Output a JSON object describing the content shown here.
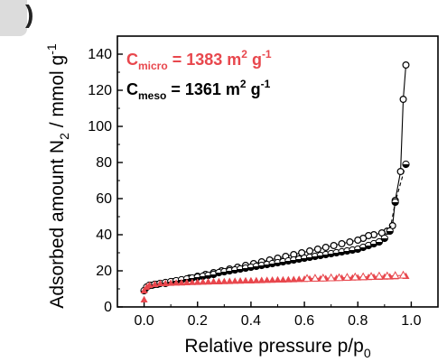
{
  "panel": {
    "label": ")"
  },
  "chart_data": {
    "type": "scatter",
    "title": "",
    "xlabel": "Relative pressure p/p",
    "xlabel_sub": "0",
    "ylabel_main": "Adsorbed amount N",
    "ylabel_sub": "2",
    "ylabel_unit": " / mmol g",
    "ylabel_sup": "-1",
    "xlim": [
      -0.1,
      1.1
    ],
    "ylim": [
      0,
      150
    ],
    "xticks": [
      "0.0",
      "0.2",
      "0.4",
      "0.6",
      "0.8",
      "1.0"
    ],
    "yticks": [
      "0",
      "20",
      "40",
      "60",
      "80",
      "100",
      "120",
      "140"
    ],
    "grid": false,
    "annotations": [
      {
        "main": "C",
        "sub": "micro",
        "rest": " = 1383 m",
        "sup": "2",
        "tail": " g",
        "sup2": "-1",
        "color": "#e8474d"
      },
      {
        "main": "C",
        "sub": "meso",
        "rest": " = 1361 m",
        "sup": "2",
        "tail": " g",
        "sup2": "-1",
        "color": "#000000"
      }
    ],
    "series": [
      {
        "marker": "circle-open",
        "color": "#000000",
        "line": "solid",
        "x": [
          0.98,
          0.97,
          0.96,
          0.94,
          0.93,
          0.91,
          0.89,
          0.86,
          0.84,
          0.82,
          0.8,
          0.77,
          0.74,
          0.71,
          0.68,
          0.65,
          0.62,
          0.59,
          0.56,
          0.53,
          0.5,
          0.47,
          0.44,
          0.41,
          0.38,
          0.35,
          0.32,
          0.29,
          0.26,
          0.23,
          0.2,
          0.17,
          0.14,
          0.11,
          0.08,
          0.05,
          0.03,
          0.01
        ],
        "y": [
          134,
          115,
          75,
          59,
          45,
          42,
          41,
          40,
          39.5,
          38,
          37,
          36,
          35,
          34,
          33,
          32,
          31,
          30,
          29,
          28,
          27,
          26,
          25,
          24,
          23,
          22,
          21,
          20,
          19,
          18,
          17,
          16,
          15,
          14,
          13,
          12.5,
          12,
          11
        ]
      },
      {
        "marker": "circle-half",
        "color": "#000000",
        "line": "dashed",
        "x": [
          0.0,
          0.01,
          0.02,
          0.04,
          0.06,
          0.08,
          0.1,
          0.12,
          0.14,
          0.16,
          0.18,
          0.2,
          0.22,
          0.24,
          0.26,
          0.28,
          0.3,
          0.32,
          0.34,
          0.36,
          0.38,
          0.4,
          0.42,
          0.44,
          0.46,
          0.48,
          0.5,
          0.52,
          0.54,
          0.56,
          0.58,
          0.6,
          0.62,
          0.64,
          0.66,
          0.68,
          0.7,
          0.72,
          0.74,
          0.76,
          0.78,
          0.8,
          0.82,
          0.84,
          0.86,
          0.88,
          0.9,
          0.92,
          0.94,
          0.98
        ],
        "y": [
          9,
          11,
          12,
          12.5,
          13,
          13.5,
          14,
          14.5,
          15,
          15.5,
          16,
          16.5,
          17,
          17.5,
          18,
          19,
          19.5,
          20,
          20.5,
          21,
          21.5,
          22,
          22.5,
          23,
          23.5,
          24,
          24.5,
          25,
          25.5,
          26,
          26.5,
          27,
          27.5,
          28,
          28.5,
          29,
          29.5,
          30,
          30.5,
          31,
          31.5,
          32,
          33,
          34,
          35,
          36,
          38,
          42,
          58,
          79
        ]
      },
      {
        "marker": "triangle-filled",
        "color": "#e8474d",
        "line": "none",
        "x": [
          0.0,
          0.0,
          0.01,
          0.02,
          0.04,
          0.06,
          0.08,
          0.1,
          0.12,
          0.14,
          0.16,
          0.18,
          0.2,
          0.22,
          0.24,
          0.26,
          0.28,
          0.3,
          0.32,
          0.34,
          0.36,
          0.38,
          0.4,
          0.42,
          0.44,
          0.46,
          0.48,
          0.5,
          0.52,
          0.54,
          0.56,
          0.58,
          0.6,
          0.62,
          0.64,
          0.66,
          0.68,
          0.7,
          0.72,
          0.74,
          0.76,
          0.78,
          0.8,
          0.82,
          0.84,
          0.86,
          0.88,
          0.9,
          0.92,
          0.94,
          0.98
        ],
        "y": [
          4,
          9,
          11,
          12,
          12.5,
          13,
          13,
          13.2,
          13.3,
          13.4,
          13.5,
          13.6,
          13.7,
          13.8,
          13.9,
          14,
          14,
          14.1,
          14.2,
          14.3,
          14.4,
          14.5,
          14.5,
          14.6,
          14.7,
          14.8,
          14.9,
          15,
          15,
          15.1,
          15.2,
          15.3,
          15.4,
          15.5,
          15.5,
          15.6,
          15.7,
          15.8,
          15.9,
          16,
          16,
          16.1,
          16.2,
          16.3,
          16.4,
          16.5,
          16.5,
          16.6,
          16.7,
          16.8,
          17
        ]
      },
      {
        "marker": "triangle-open",
        "color": "#e8474d",
        "line": "solid",
        "x": [
          0.97,
          0.94,
          0.91,
          0.88,
          0.85,
          0.82,
          0.79,
          0.76,
          0.73,
          0.7,
          0.67,
          0.64,
          0.61
        ],
        "y": [
          17.5,
          17.3,
          17.1,
          17,
          16.8,
          16.6,
          16.5,
          16.3,
          16.1,
          16,
          15.9,
          15.8,
          15.7
        ]
      }
    ]
  }
}
